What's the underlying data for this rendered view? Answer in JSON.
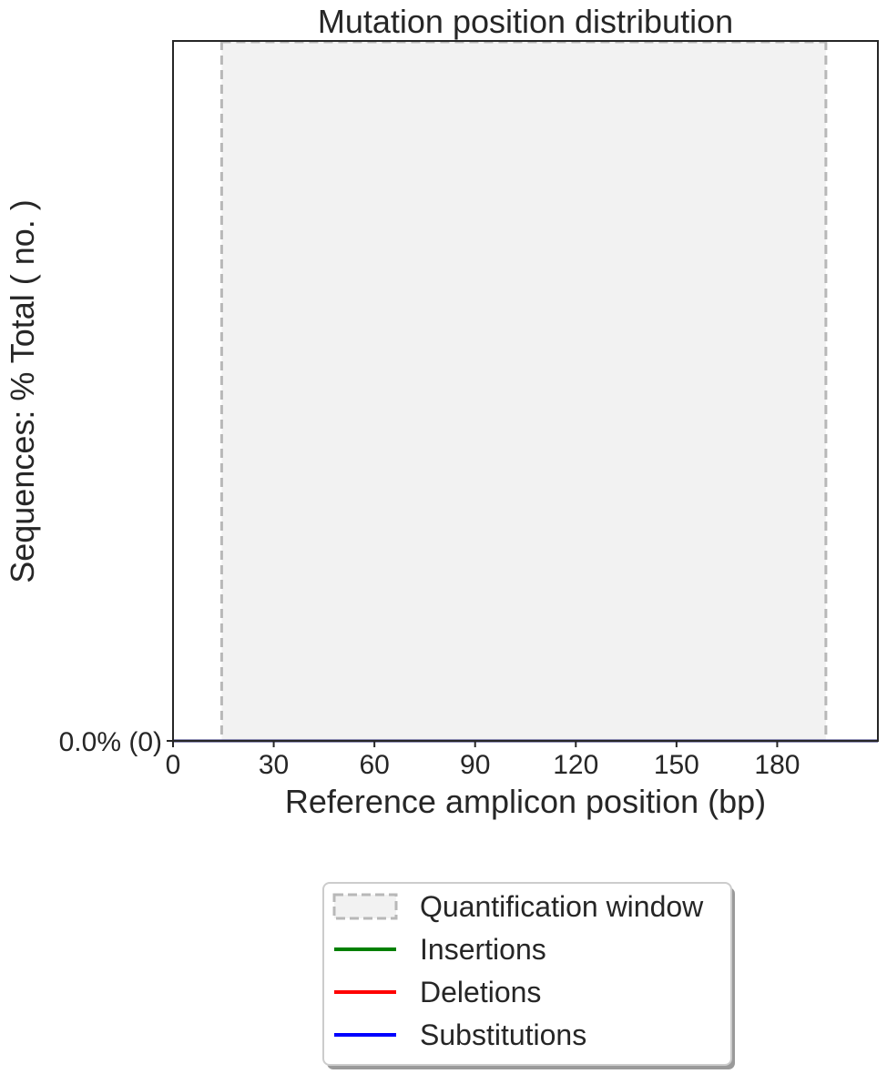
{
  "chart_data": {
    "type": "line",
    "title": "Mutation position distribution",
    "xlabel": "Reference amplicon position (bp)",
    "ylabel": "Sequences: % Total ( no. )",
    "xlim": [
      0,
      210
    ],
    "ylim": [
      0,
      1
    ],
    "x_ticks": [
      0,
      30,
      60,
      90,
      120,
      150,
      180
    ],
    "x_tick_labels": [
      "0",
      "30",
      "60",
      "90",
      "120",
      "150",
      "180"
    ],
    "y_ticks": [
      0
    ],
    "y_tick_labels": [
      "0.0% (0)"
    ],
    "quantification_window": {
      "x_start": 14.5,
      "x_end": 194.5
    },
    "series": [
      {
        "name": "Insertions",
        "color": "#008000",
        "x": [
          0,
          210
        ],
        "y": [
          0,
          0
        ]
      },
      {
        "name": "Deletions",
        "color": "#ff0000",
        "x": [
          0,
          210
        ],
        "y": [
          0,
          0
        ]
      },
      {
        "name": "Substitutions",
        "color": "#0000ff",
        "x": [
          0,
          210
        ],
        "y": [
          0,
          0
        ]
      }
    ],
    "legend": {
      "placement": "below-center",
      "entries": [
        {
          "label": "Quantification window",
          "style": "dashed-box",
          "color": "#b8b8b8",
          "fill": "#f2f2f2"
        },
        {
          "label": "Insertions",
          "style": "line",
          "color": "#008000"
        },
        {
          "label": "Deletions",
          "style": "line",
          "color": "#ff0000"
        },
        {
          "label": "Substitutions",
          "style": "line",
          "color": "#0000ff"
        }
      ]
    },
    "grid": false
  }
}
